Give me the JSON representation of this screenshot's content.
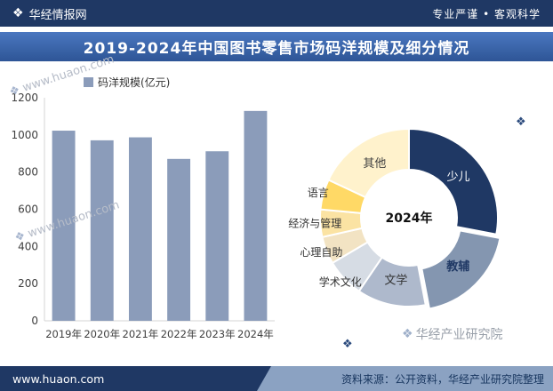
{
  "header": {
    "logo": "❖",
    "brand": "华经情报网",
    "slogan": "专业严谨 • 客观科学"
  },
  "title": "2019-2024年中国图书零售市场码洋规模及细分情况",
  "chart_data": [
    {
      "type": "bar",
      "title": "码洋规模(亿元)",
      "categories": [
        "2019年",
        "2020年",
        "2021年",
        "2022年",
        "2023年",
        "2024年"
      ],
      "values": [
        1023,
        971,
        987,
        871,
        912,
        1129
      ],
      "ylim": [
        0,
        1200
      ],
      "yticks": [
        0,
        200,
        400,
        600,
        800,
        1000,
        1200
      ],
      "bar_color": "#8b9cba",
      "grid": false,
      "legend_position": "top-left"
    },
    {
      "type": "pie",
      "center_label": "2024年",
      "slices": [
        {
          "label": "少儿",
          "value": 28,
          "color": "#1f3864",
          "label_color": "#ffffff"
        },
        {
          "label": "教辅",
          "value": 19,
          "color": "#8496b0",
          "label_color": "#1f3864",
          "bold": true,
          "explode": true
        },
        {
          "label": "文学",
          "value": 12.5,
          "color": "#aeb9cc",
          "label_color": "#333333"
        },
        {
          "label": "学术文化",
          "value": 7,
          "color": "#d6dce4",
          "label_color": "#333333"
        },
        {
          "label": "心理自助",
          "value": 5,
          "color": "#f2e3c3",
          "label_color": "#333333"
        },
        {
          "label": "经济与管理",
          "value": 5,
          "color": "#fbe3a3",
          "label_color": "#333333"
        },
        {
          "label": "语言",
          "value": 5.5,
          "color": "#ffd966",
          "label_color": "#333333"
        },
        {
          "label": "其他",
          "value": 18,
          "color": "#fff2cc",
          "label_color": "#404040"
        }
      ]
    }
  ],
  "watermark": {
    "logo": "❖",
    "text": "www.huaon.com",
    "brand": "华经产业研究院"
  },
  "footer": {
    "site": "www.huaon.com",
    "source": "资料来源：公开资料，华经产业研究院整理"
  }
}
